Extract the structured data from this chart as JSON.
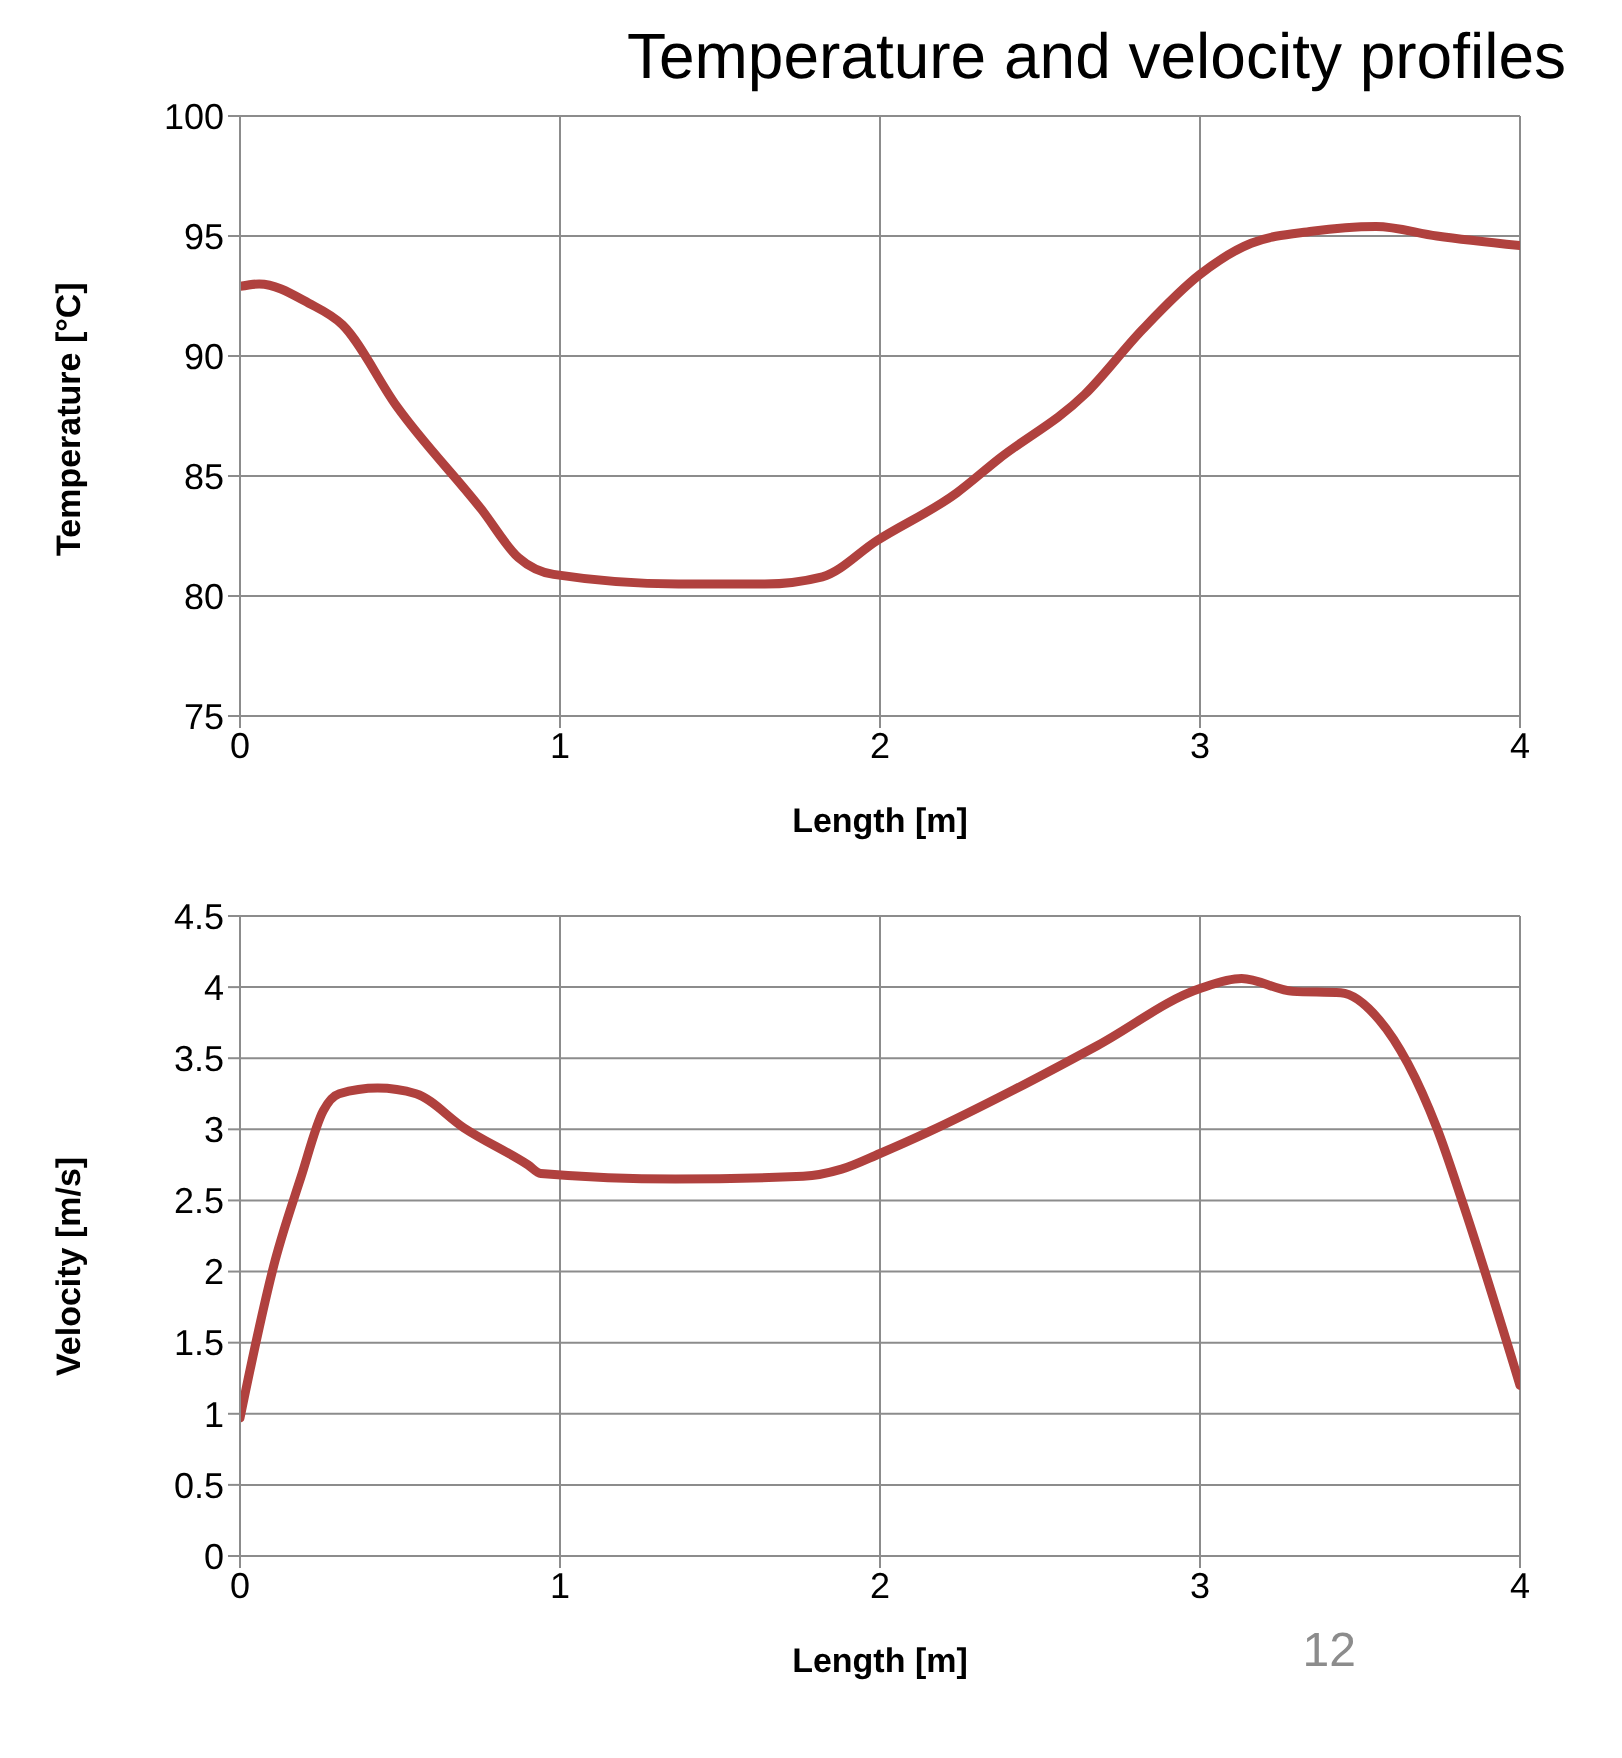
{
  "chart_data": [
    {
      "type": "line",
      "title": "Temperature and velocity profiles",
      "xlabel": "Length [m]",
      "ylabel": "Temperature [°C]",
      "x": [
        0,
        0.06,
        0.215,
        0.32,
        0.49,
        0.755,
        0.87,
        0.98,
        1.37,
        1.64,
        1.82,
        1.99,
        2.24,
        2.37,
        2.64,
        2.82,
        3.0,
        3.16,
        3.35,
        3.55,
        3.74,
        4.0
      ],
      "series": [
        {
          "color": "#b0413e",
          "values": [
            92.9,
            93.0,
            92.2,
            91.3,
            87.9,
            83.6,
            81.6,
            80.9,
            80.5,
            80.5,
            80.8,
            82.3,
            84.3,
            85.7,
            88.4,
            91.1,
            93.4,
            94.7,
            95.2,
            95.4,
            95.0,
            94.6
          ]
        }
      ],
      "xlim": [
        0,
        4
      ],
      "xticks": [
        0,
        1,
        2,
        3,
        4
      ],
      "ylim": [
        75,
        100
      ],
      "yticks": [
        75,
        80,
        85,
        90,
        95,
        100
      ],
      "grid": true,
      "legend": false,
      "marker": "none",
      "line_style": "solid"
    },
    {
      "type": "line",
      "xlabel": "Length [m]",
      "ylabel": "Velocity [m/s]",
      "annotations": [
        "12"
      ],
      "x": [
        0,
        0.11,
        0.19,
        0.26,
        0.31,
        0.43,
        0.55,
        0.7,
        0.9,
        0.94,
        1.36,
        1.76,
        1.88,
        2.0,
        2.15,
        2.42,
        2.68,
        3.0,
        3.13,
        3.29,
        3.44,
        3.56,
        3.74,
        3.82,
        4.0
      ],
      "series": [
        {
          "color": "#b0413e",
          "values": [
            0.97,
            2.08,
            2.66,
            3.13,
            3.25,
            3.29,
            3.25,
            3.01,
            2.75,
            2.69,
            2.65,
            2.67,
            2.72,
            2.83,
            2.98,
            3.28,
            3.59,
            3.99,
            4.06,
            3.97,
            3.96,
            3.77,
            3.01,
            2.49,
            1.2
          ]
        }
      ],
      "xlim": [
        0,
        4
      ],
      "xticks": [
        0,
        1,
        2,
        3,
        4
      ],
      "ylim": [
        0,
        4.5
      ],
      "yticks": [
        0,
        0.5,
        1,
        1.5,
        2,
        2.5,
        3,
        3.5,
        4,
        4.5
      ],
      "grid": true,
      "legend": false,
      "marker": "none",
      "line_style": "solid"
    }
  ]
}
